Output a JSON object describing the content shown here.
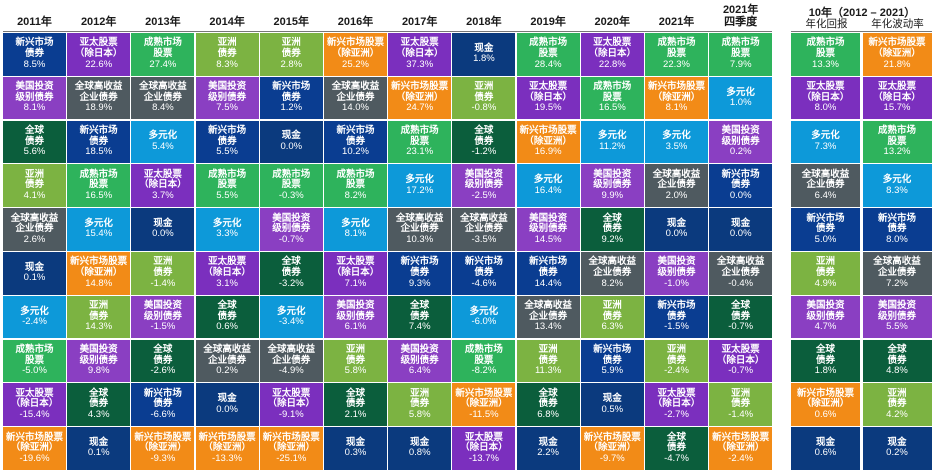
{
  "colors": {
    "新兴市场债券": "#0a3d91",
    "亚洲债券": "#7cb342",
    "成熟市场股票": "#2eb35c",
    "亚太股票": "#7b2fbe",
    "全球债券": "#0b5e3c",
    "美国投资级别债券": "#8a3fc2",
    "全球高收益企业债券": "#4f5a60",
    "多元化": "#0d99d9",
    "现金": "#0b3a7e",
    "新兴市场股票": "#f28b17"
  },
  "chart_data": {
    "type": "table",
    "columns": [
      {
        "header": "2011年",
        "cells": [
          {
            "label": "新兴市场\n债券",
            "value": "8.5%",
            "asset": "新兴市场债券"
          },
          {
            "label": "美国投资\n级别债券",
            "value": "8.1%",
            "asset": "美国投资级别债券"
          },
          {
            "label": "全球\n债券",
            "value": "5.6%",
            "asset": "全球债券"
          },
          {
            "label": "亚洲\n债券",
            "value": "4.1%",
            "asset": "亚洲债券"
          },
          {
            "label": "全球高收益\n企业债券",
            "value": "2.6%",
            "asset": "全球高收益企业债券"
          },
          {
            "label": "现金",
            "value": "0.1%",
            "asset": "现金"
          },
          {
            "label": "多元化",
            "value": "-2.4%",
            "asset": "多元化"
          },
          {
            "label": "成熟市场\n股票",
            "value": "-5.0%",
            "asset": "成熟市场股票"
          },
          {
            "label": "亚太股票\n（除日本）",
            "value": "-15.4%",
            "asset": "亚太股票"
          },
          {
            "label": "新兴市场股票\n（除亚洲）",
            "value": "-19.6%",
            "asset": "新兴市场股票"
          }
        ]
      },
      {
        "header": "2012年",
        "cells": [
          {
            "label": "亚太股票\n（除日本）",
            "value": "22.6%",
            "asset": "亚太股票"
          },
          {
            "label": "全球高收益\n企业债券",
            "value": "18.9%",
            "asset": "全球高收益企业债券"
          },
          {
            "label": "新兴市场\n债券",
            "value": "18.5%",
            "asset": "新兴市场债券"
          },
          {
            "label": "成熟市场\n股票",
            "value": "16.5%",
            "asset": "成熟市场股票"
          },
          {
            "label": "多元化",
            "value": "15.4%",
            "asset": "多元化"
          },
          {
            "label": "新兴市场股票\n（除亚洲）",
            "value": "14.8%",
            "asset": "新兴市场股票"
          },
          {
            "label": "亚洲\n债券",
            "value": "14.3%",
            "asset": "亚洲债券"
          },
          {
            "label": "美国投资\n级别债券",
            "value": "9.8%",
            "asset": "美国投资级别债券"
          },
          {
            "label": "全球\n债券",
            "value": "4.3%",
            "asset": "全球债券"
          },
          {
            "label": "现金",
            "value": "0.1%",
            "asset": "现金"
          }
        ]
      },
      {
        "header": "2013年",
        "cells": [
          {
            "label": "成熟市场\n股票",
            "value": "27.4%",
            "asset": "成熟市场股票"
          },
          {
            "label": "全球高收益\n企业债券",
            "value": "8.4%",
            "asset": "全球高收益企业债券"
          },
          {
            "label": "多元化",
            "value": "5.4%",
            "asset": "多元化"
          },
          {
            "label": "亚太股票\n（除日本）",
            "value": "3.7%",
            "asset": "亚太股票"
          },
          {
            "label": "现金",
            "value": "0.0%",
            "asset": "现金"
          },
          {
            "label": "亚洲\n债券",
            "value": "-1.4%",
            "asset": "亚洲债券"
          },
          {
            "label": "美国投资\n级别债券",
            "value": "-1.5%",
            "asset": "美国投资级别债券"
          },
          {
            "label": "全球\n债券",
            "value": "-2.6%",
            "asset": "全球债券"
          },
          {
            "label": "新兴市场\n债券",
            "value": "-6.6%",
            "asset": "新兴市场债券"
          },
          {
            "label": "新兴市场股票\n（除亚洲）",
            "value": "-9.3%",
            "asset": "新兴市场股票"
          }
        ]
      },
      {
        "header": "2014年",
        "cells": [
          {
            "label": "亚洲\n债券",
            "value": "8.3%",
            "asset": "亚洲债券"
          },
          {
            "label": "美国投资\n级别债券",
            "value": "7.5%",
            "asset": "美国投资级别债券"
          },
          {
            "label": "新兴市场\n债券",
            "value": "5.5%",
            "asset": "新兴市场债券"
          },
          {
            "label": "成熟市场\n股票",
            "value": "5.5%",
            "asset": "成熟市场股票"
          },
          {
            "label": "多元化",
            "value": "3.3%",
            "asset": "多元化"
          },
          {
            "label": "亚太股票\n（除日本）",
            "value": "3.1%",
            "asset": "亚太股票"
          },
          {
            "label": "全球\n债券",
            "value": "0.6%",
            "asset": "全球债券"
          },
          {
            "label": "全球高收益\n企业债券",
            "value": "0.2%",
            "asset": "全球高收益企业债券"
          },
          {
            "label": "现金",
            "value": "0.0%",
            "asset": "现金"
          },
          {
            "label": "新兴市场股票\n（除亚洲）",
            "value": "-13.3%",
            "asset": "新兴市场股票"
          }
        ]
      },
      {
        "header": "2015年",
        "cells": [
          {
            "label": "亚洲\n债券",
            "value": "2.8%",
            "asset": "亚洲债券"
          },
          {
            "label": "新兴市场\n债券",
            "value": "1.2%",
            "asset": "新兴市场债券"
          },
          {
            "label": "现金",
            "value": "0.0%",
            "asset": "现金"
          },
          {
            "label": "成熟市场\n股票",
            "value": "-0.3%",
            "asset": "成熟市场股票"
          },
          {
            "label": "美国投资\n级别债券",
            "value": "-0.7%",
            "asset": "美国投资级别债券"
          },
          {
            "label": "全球\n债券",
            "value": "-3.2%",
            "asset": "全球债券"
          },
          {
            "label": "多元化",
            "value": "-3.4%",
            "asset": "多元化"
          },
          {
            "label": "全球高收益\n企业债券",
            "value": "-4.9%",
            "asset": "全球高收益企业债券"
          },
          {
            "label": "亚太股票\n（除日本）",
            "value": "-9.1%",
            "asset": "亚太股票"
          },
          {
            "label": "新兴市场股票\n（除亚洲）",
            "value": "-25.1%",
            "asset": "新兴市场股票"
          }
        ]
      },
      {
        "header": "2016年",
        "cells": [
          {
            "label": "新兴市场股票\n（除亚洲）",
            "value": "25.2%",
            "asset": "新兴市场股票"
          },
          {
            "label": "全球高收益\n企业债券",
            "value": "14.0%",
            "asset": "全球高收益企业债券"
          },
          {
            "label": "新兴市场\n债券",
            "value": "10.2%",
            "asset": "新兴市场债券"
          },
          {
            "label": "成熟市场\n股票",
            "value": "8.2%",
            "asset": "成熟市场股票"
          },
          {
            "label": "多元化",
            "value": "8.1%",
            "asset": "多元化"
          },
          {
            "label": "亚太股票\n（除日本）",
            "value": "7.1%",
            "asset": "亚太股票"
          },
          {
            "label": "美国投资\n级别债券",
            "value": "6.1%",
            "asset": "美国投资级别债券"
          },
          {
            "label": "亚洲\n债券",
            "value": "5.8%",
            "asset": "亚洲债券"
          },
          {
            "label": "全球\n债券",
            "value": "2.1%",
            "asset": "全球债券"
          },
          {
            "label": "现金",
            "value": "0.3%",
            "asset": "现金"
          }
        ]
      },
      {
        "header": "2017年",
        "cells": [
          {
            "label": "亚太股票\n（除日本）",
            "value": "37.3%",
            "asset": "亚太股票"
          },
          {
            "label": "新兴市场股票\n（除亚洲）",
            "value": "24.7%",
            "asset": "新兴市场股票"
          },
          {
            "label": "成熟市场\n股票",
            "value": "23.1%",
            "asset": "成熟市场股票"
          },
          {
            "label": "多元化",
            "value": "17.2%",
            "asset": "多元化"
          },
          {
            "label": "全球高收益\n企业债券",
            "value": "10.3%",
            "asset": "全球高收益企业债券"
          },
          {
            "label": "新兴市场\n债券",
            "value": "9.3%",
            "asset": "新兴市场债券"
          },
          {
            "label": "全球\n债券",
            "value": "7.4%",
            "asset": "全球债券"
          },
          {
            "label": "美国投资\n级别债券",
            "value": "6.4%",
            "asset": "美国投资级别债券"
          },
          {
            "label": "亚洲\n债券",
            "value": "5.8%",
            "asset": "亚洲债券"
          },
          {
            "label": "现金",
            "value": "0.8%",
            "asset": "现金"
          }
        ]
      },
      {
        "header": "2018年",
        "cells": [
          {
            "label": "现金",
            "value": "1.8%",
            "asset": "现金"
          },
          {
            "label": "亚洲\n债券",
            "value": "-0.8%",
            "asset": "亚洲债券"
          },
          {
            "label": "全球\n债券",
            "value": "-1.2%",
            "asset": "全球债券"
          },
          {
            "label": "美国投资\n级别债券",
            "value": "-2.5%",
            "asset": "美国投资级别债券"
          },
          {
            "label": "全球高收益\n企业债券",
            "value": "-3.5%",
            "asset": "全球高收益企业债券"
          },
          {
            "label": "新兴市场\n债券",
            "value": "-4.6%",
            "asset": "新兴市场债券"
          },
          {
            "label": "多元化",
            "value": "-6.0%",
            "asset": "多元化"
          },
          {
            "label": "成熟市场\n股票",
            "value": "-8.2%",
            "asset": "成熟市场股票"
          },
          {
            "label": "新兴市场股票\n（除亚洲）",
            "value": "-11.5%",
            "asset": "新兴市场股票"
          },
          {
            "label": "亚太股票\n（除日本）",
            "value": "-13.7%",
            "asset": "亚太股票"
          }
        ]
      },
      {
        "header": "2019年",
        "cells": [
          {
            "label": "成熟市场\n股票",
            "value": "28.4%",
            "asset": "成熟市场股票"
          },
          {
            "label": "亚太股票\n（除日本）",
            "value": "19.5%",
            "asset": "亚太股票"
          },
          {
            "label": "新兴市场股票\n（除亚洲）",
            "value": "16.9%",
            "asset": "新兴市场股票"
          },
          {
            "label": "多元化",
            "value": "16.4%",
            "asset": "多元化"
          },
          {
            "label": "美国投资\n级别债券",
            "value": "14.5%",
            "asset": "美国投资级别债券"
          },
          {
            "label": "新兴市场\n债券",
            "value": "14.4%",
            "asset": "新兴市场债券"
          },
          {
            "label": "全球高收益\n企业债券",
            "value": "13.4%",
            "asset": "全球高收益企业债券"
          },
          {
            "label": "亚洲\n债券",
            "value": "11.3%",
            "asset": "亚洲债券"
          },
          {
            "label": "全球\n债券",
            "value": "6.8%",
            "asset": "全球债券"
          },
          {
            "label": "现金",
            "value": "2.2%",
            "asset": "现金"
          }
        ]
      },
      {
        "header": "2020年",
        "cells": [
          {
            "label": "亚太股票\n（除日本）",
            "value": "22.8%",
            "asset": "亚太股票"
          },
          {
            "label": "成熟市场\n股票",
            "value": "16.5%",
            "asset": "成熟市场股票"
          },
          {
            "label": "多元化",
            "value": "11.2%",
            "asset": "多元化"
          },
          {
            "label": "美国投资\n级别债券",
            "value": "9.9%",
            "asset": "美国投资级别债券"
          },
          {
            "label": "全球\n债券",
            "value": "9.2%",
            "asset": "全球债券"
          },
          {
            "label": "全球高收益\n企业债券",
            "value": "8.2%",
            "asset": "全球高收益企业债券"
          },
          {
            "label": "亚洲\n债券",
            "value": "6.3%",
            "asset": "亚洲债券"
          },
          {
            "label": "新兴市场\n债券",
            "value": "5.9%",
            "asset": "新兴市场债券"
          },
          {
            "label": "现金",
            "value": "0.5%",
            "asset": "现金"
          },
          {
            "label": "新兴市场股票\n（除亚洲）",
            "value": "-9.7%",
            "asset": "新兴市场股票"
          }
        ]
      },
      {
        "header": "2021年",
        "cells": [
          {
            "label": "成熟市场\n股票",
            "value": "22.3%",
            "asset": "成熟市场股票"
          },
          {
            "label": "新兴市场股票\n（除亚洲）",
            "value": "8.1%",
            "asset": "新兴市场股票"
          },
          {
            "label": "多元化",
            "value": "3.5%",
            "asset": "多元化"
          },
          {
            "label": "全球高收益\n企业债券",
            "value": "2.0%",
            "asset": "全球高收益企业债券"
          },
          {
            "label": "现金",
            "value": "0.0%",
            "asset": "现金"
          },
          {
            "label": "美国投资\n级别债券",
            "value": "-1.0%",
            "asset": "美国投资级别债券"
          },
          {
            "label": "新兴市场\n债券",
            "value": "-1.5%",
            "asset": "新兴市场债券"
          },
          {
            "label": "亚洲\n债券",
            "value": "-2.4%",
            "asset": "亚洲债券"
          },
          {
            "label": "亚太股票\n（除日本）",
            "value": "-2.7%",
            "asset": "亚太股票"
          },
          {
            "label": "全球\n债券",
            "value": "-4.7%",
            "asset": "全球债券"
          }
        ]
      },
      {
        "header": "2021年\n四季度",
        "cells": [
          {
            "label": "成熟市场\n股票",
            "value": "7.9%",
            "asset": "成熟市场股票"
          },
          {
            "label": "多元化",
            "value": "1.0%",
            "asset": "多元化"
          },
          {
            "label": "美国投资\n级别债券",
            "value": "0.2%",
            "asset": "美国投资级别债券"
          },
          {
            "label": "新兴市场\n债券",
            "value": "0.0%",
            "asset": "新兴市场债券"
          },
          {
            "label": "现金",
            "value": "0.0%",
            "asset": "现金"
          },
          {
            "label": "全球高收益\n企业债券",
            "value": "-0.4%",
            "asset": "全球高收益企业债券"
          },
          {
            "label": "全球\n债券",
            "value": "-0.7%",
            "asset": "全球债券"
          },
          {
            "label": "亚太股票\n（除日本）",
            "value": "-0.7%",
            "asset": "亚太股票"
          },
          {
            "label": "亚洲\n债券",
            "value": "-1.4%",
            "asset": "亚洲债券"
          },
          {
            "label": "新兴市场股票\n（除亚洲）",
            "value": "-2.4%",
            "asset": "新兴市场股票"
          }
        ]
      }
    ],
    "summary": {
      "title": "10年（2012 – 2021）",
      "columns": [
        {
          "header": "年化回报",
          "cells": [
            {
              "label": "成熟市场\n股票",
              "value": "13.3%",
              "asset": "成熟市场股票"
            },
            {
              "label": "亚太股票\n（除日本）",
              "value": "8.0%",
              "asset": "亚太股票"
            },
            {
              "label": "多元化",
              "value": "7.3%",
              "asset": "多元化"
            },
            {
              "label": "全球高收益\n企业债券",
              "value": "6.4%",
              "asset": "全球高收益企业债券"
            },
            {
              "label": "新兴市场\n债券",
              "value": "5.0%",
              "asset": "新兴市场债券"
            },
            {
              "label": "亚洲\n债券",
              "value": "4.9%",
              "asset": "亚洲债券"
            },
            {
              "label": "美国投资\n级别债券",
              "value": "4.7%",
              "asset": "美国投资级别债券"
            },
            {
              "label": "全球\n债券",
              "value": "1.8%",
              "asset": "全球债券"
            },
            {
              "label": "新兴市场股票\n（除亚洲）",
              "value": "0.6%",
              "asset": "新兴市场股票"
            },
            {
              "label": "现金",
              "value": "0.6%",
              "asset": "现金"
            }
          ]
        },
        {
          "header": "年化波动率",
          "cells": [
            {
              "label": "新兴市场股票\n（除亚洲）",
              "value": "21.8%",
              "asset": "新兴市场股票"
            },
            {
              "label": "亚太股票\n（除日本）",
              "value": "15.7%",
              "asset": "亚太股票"
            },
            {
              "label": "成熟市场\n股票",
              "value": "13.2%",
              "asset": "成熟市场股票"
            },
            {
              "label": "多元化",
              "value": "8.3%",
              "asset": "多元化"
            },
            {
              "label": "新兴市场\n债券",
              "value": "8.0%",
              "asset": "新兴市场债券"
            },
            {
              "label": "全球高收益\n企业债券",
              "value": "7.2%",
              "asset": "全球高收益企业债券"
            },
            {
              "label": "美国投资\n级别债券",
              "value": "5.5%",
              "asset": "美国投资级别债券"
            },
            {
              "label": "全球\n债券",
              "value": "4.8%",
              "asset": "全球债券"
            },
            {
              "label": "亚洲\n债券",
              "value": "4.2%",
              "asset": "亚洲债券"
            },
            {
              "label": "现金",
              "value": "0.2%",
              "asset": "现金"
            }
          ]
        }
      ]
    }
  }
}
